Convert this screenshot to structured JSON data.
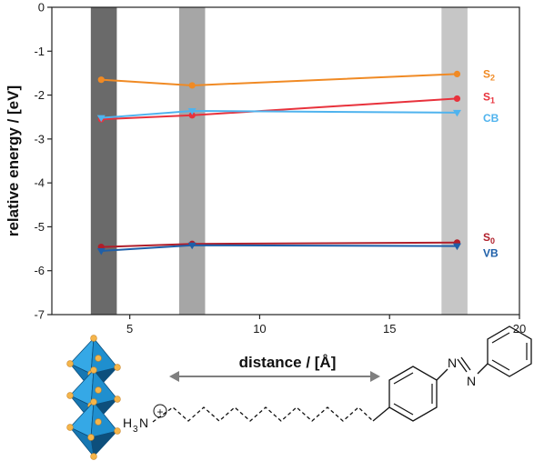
{
  "chart_data": {
    "type": "line",
    "xlabel": "distance / [Å]",
    "ylabel": "relative energy / [eV]",
    "xlim": [
      2,
      20
    ],
    "ylim": [
      -7,
      0
    ],
    "x_ticks": [
      5,
      10,
      15,
      20
    ],
    "y_ticks": [
      0,
      -1,
      -2,
      -3,
      -4,
      -5,
      -6,
      -7
    ],
    "shaded_bands": [
      {
        "x_start": 3.5,
        "x_end": 4.5,
        "color": "#6a6a6a"
      },
      {
        "x_start": 6.9,
        "x_end": 7.9,
        "color": "#a6a6a6"
      },
      {
        "x_start": 17.0,
        "x_end": 18.0,
        "color": "#c6c6c6"
      }
    ],
    "series": [
      {
        "name": "S",
        "sub": "2",
        "color": "#f08a24",
        "marker": "circle",
        "x": [
          3.9,
          7.4,
          17.6
        ],
        "y": [
          -1.65,
          -1.78,
          -1.52
        ]
      },
      {
        "name": "S",
        "sub": "1",
        "color": "#e8323c",
        "marker": "circle",
        "x": [
          3.9,
          7.4,
          17.6
        ],
        "y": [
          -2.55,
          -2.46,
          -2.08
        ]
      },
      {
        "name": "CB",
        "sub": "",
        "color": "#4fb3ee",
        "marker": "triangle",
        "x": [
          3.9,
          7.4,
          17.6
        ],
        "y": [
          -2.52,
          -2.36,
          -2.4
        ]
      },
      {
        "name": "S",
        "sub": "0",
        "color": "#b01e2a",
        "marker": "circle",
        "x": [
          3.9,
          7.4,
          17.6
        ],
        "y": [
          -5.46,
          -5.39,
          -5.36
        ]
      },
      {
        "name": "VB",
        "sub": "",
        "color": "#1e5fa8",
        "marker": "triangle",
        "x": [
          3.9,
          7.4,
          17.6
        ],
        "y": [
          -5.55,
          -5.42,
          -5.44
        ]
      }
    ]
  },
  "molecule": {
    "amine_main": "H",
    "amine_sub": "3",
    "amine_n": "N",
    "charge": "+",
    "azo_n1": "N",
    "azo_n2": "N"
  },
  "colors": {
    "octahedron": "#1f8fcf",
    "octahedron_dark": "#0d4f7c",
    "vertex": "#f5b54a",
    "arrow": "#7f7f7f"
  }
}
